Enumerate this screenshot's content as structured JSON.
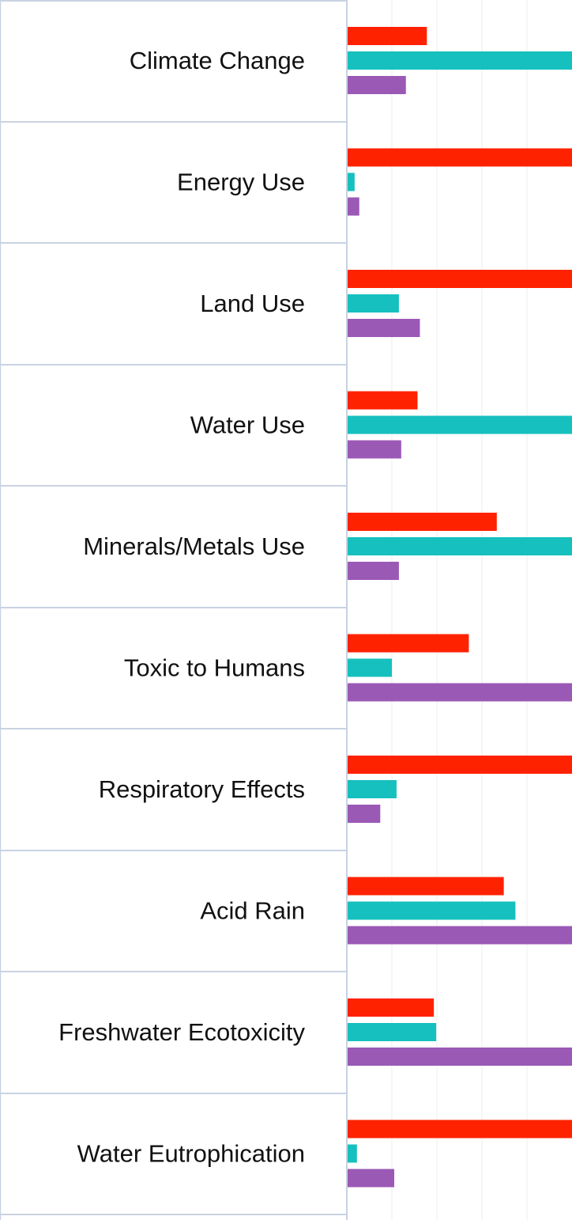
{
  "chart_data": {
    "type": "bar",
    "orientation": "horizontal",
    "categories": [
      "Climate Change",
      "Energy Use",
      "Land Use",
      "Water Use",
      "Minerals/Metals Use",
      "Toxic to Humans",
      "Respiratory Effects",
      "Acid Rain",
      "Freshwater Ecotoxicity",
      "Water Eutrophication"
    ],
    "series": [
      {
        "values": [
          34,
          100,
          100,
          30,
          64,
          52,
          100,
          67,
          37,
          100
        ]
      },
      {
        "values": [
          100,
          3,
          22,
          100,
          100,
          19,
          21,
          72,
          38,
          4
        ]
      },
      {
        "values": [
          25,
          5,
          31,
          23,
          22,
          100,
          14,
          100,
          100,
          20
        ]
      }
    ],
    "xlim": [
      0,
      100
    ],
    "grid": true,
    "colors": [
      "#ff2200",
      "#16c0be",
      "#9b59b6"
    ],
    "gridline_color": "#ececec",
    "separator_color": "#c8d2e2"
  }
}
